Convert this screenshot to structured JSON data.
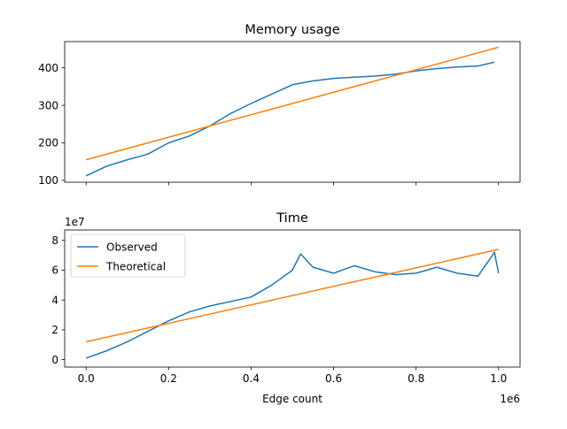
{
  "chart_data": [
    {
      "type": "line",
      "title": "Memory usage",
      "xlabel": "",
      "ylabel": "",
      "xlim": [
        -52000,
        1052000
      ],
      "ylim": [
        95,
        470
      ],
      "x_ticks": [
        0,
        200000,
        400000,
        600000,
        800000,
        1000000
      ],
      "y_ticks": [
        100,
        200,
        300,
        400
      ],
      "y_tick_labels": [
        "100",
        "200",
        "300",
        "400"
      ],
      "show_x_tick_labels": false,
      "series": [
        {
          "name": "Observed",
          "color": "#1f77b4",
          "x": [
            0,
            50000,
            100000,
            150000,
            200000,
            250000,
            300000,
            350000,
            400000,
            450000,
            500000,
            550000,
            600000,
            650000,
            700000,
            750000,
            800000,
            850000,
            900000,
            950000,
            990000
          ],
          "y": [
            112,
            138,
            155,
            170,
            200,
            218,
            245,
            278,
            305,
            330,
            355,
            365,
            372,
            375,
            378,
            383,
            392,
            398,
            402,
            405,
            415
          ]
        },
        {
          "name": "Theoretical",
          "color": "#ff7f0e",
          "x": [
            0,
            1000000
          ],
          "y": [
            155,
            455
          ]
        }
      ]
    },
    {
      "type": "line",
      "title": "Time",
      "xlabel": "Edge count",
      "ylabel": "",
      "x_offset_label": "1e6",
      "y_offset_label": "1e7",
      "xlim": [
        -52000,
        1052000
      ],
      "ylim": [
        -0.5,
        8.7
      ],
      "x_ticks": [
        0,
        200000,
        400000,
        600000,
        800000,
        1000000
      ],
      "x_tick_labels": [
        "0.0",
        "0.2",
        "0.4",
        "0.6",
        "0.8",
        "1.0"
      ],
      "y_ticks": [
        0,
        2,
        4,
        6,
        8
      ],
      "y_tick_labels": [
        "0",
        "2",
        "4",
        "6",
        "8"
      ],
      "legend": {
        "position": "top-left",
        "entries": [
          "Observed",
          "Theoretical"
        ]
      },
      "series": [
        {
          "name": "Observed",
          "color": "#1f77b4",
          "x": [
            0,
            50000,
            100000,
            150000,
            200000,
            250000,
            300000,
            350000,
            400000,
            450000,
            500000,
            520000,
            550000,
            600000,
            650000,
            700000,
            750000,
            800000,
            850000,
            900000,
            950000,
            990000,
            1000000
          ],
          "y": [
            0.1,
            0.6,
            1.2,
            1.9,
            2.6,
            3.2,
            3.6,
            3.9,
            4.2,
            5.0,
            6.0,
            7.1,
            6.2,
            5.8,
            6.3,
            5.9,
            5.7,
            5.8,
            6.2,
            5.8,
            5.6,
            7.2,
            5.8
          ]
        },
        {
          "name": "Theoretical",
          "color": "#ff7f0e",
          "x": [
            0,
            1000000
          ],
          "y": [
            1.2,
            7.4
          ]
        }
      ]
    }
  ]
}
